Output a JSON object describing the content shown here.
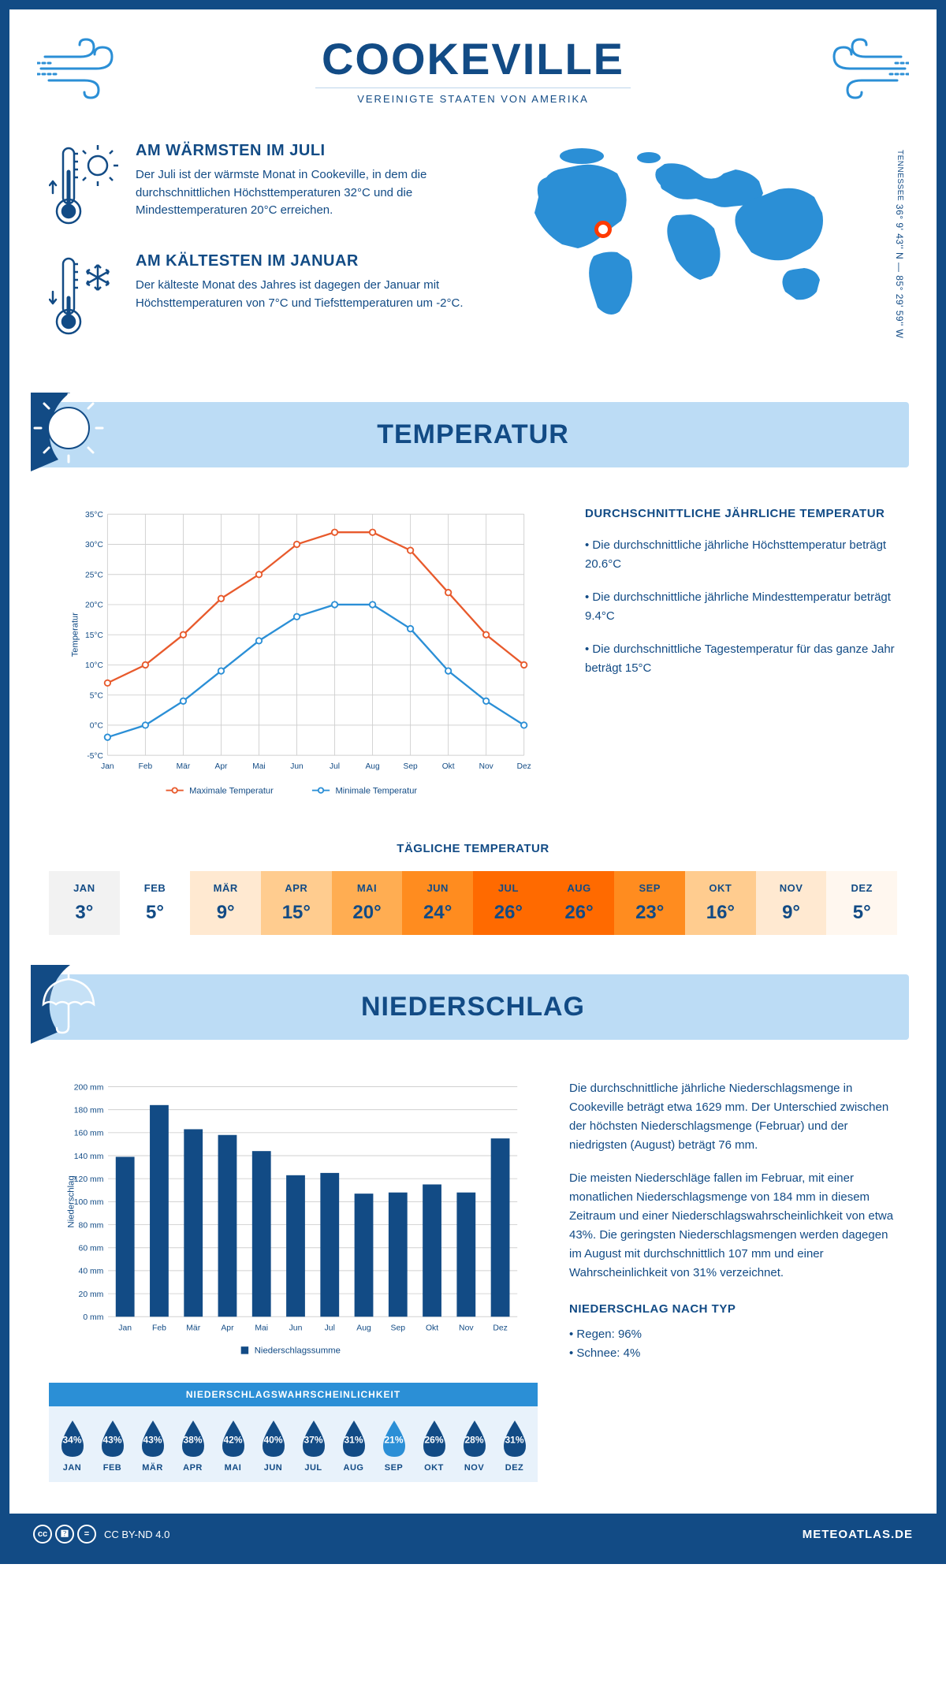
{
  "header": {
    "city": "COOKEVILLE",
    "country": "VEREINIGTE STAATEN VON AMERIKA",
    "region": "TENNESSEE",
    "coords": "36° 9' 43'' N — 85° 29' 59'' W"
  },
  "colors": {
    "primary": "#124b85",
    "accent": "#2b8fd6",
    "banner_bg": "#bcdcf5",
    "marker": "#ff3a00",
    "max_line": "#e85a2c",
    "min_line": "#2b8fd6",
    "bar": "#124b85",
    "prob_bg": "#e8f2fb",
    "drop_dark": "#124b85",
    "drop_light": "#2b8fd6"
  },
  "intro": {
    "warm": {
      "title": "AM WÄRMSTEN IM JULI",
      "text": "Der Juli ist der wärmste Monat in Cookeville, in dem die durchschnittlichen Höchsttemperaturen 32°C und die Mindesttemperaturen 20°C erreichen."
    },
    "cold": {
      "title": "AM KÄLTESTEN IM JANUAR",
      "text": "Der kälteste Monat des Jahres ist dagegen der Januar mit Höchsttemperaturen von 7°C und Tiefsttemperaturen um -2°C."
    }
  },
  "temperature_section": {
    "title": "TEMPERATUR",
    "chart": {
      "type": "line",
      "months": [
        "Jan",
        "Feb",
        "Mär",
        "Apr",
        "Mai",
        "Jun",
        "Jul",
        "Aug",
        "Sep",
        "Okt",
        "Nov",
        "Dez"
      ],
      "max_values": [
        7,
        10,
        15,
        21,
        25,
        30,
        32,
        32,
        29,
        22,
        15,
        10
      ],
      "min_values": [
        -2,
        0,
        4,
        9,
        14,
        18,
        20,
        20,
        16,
        9,
        4,
        0
      ],
      "ylim": [
        -5,
        35
      ],
      "ytick_step": 5,
      "y_unit": "°C",
      "y_label": "Temperatur",
      "legend_max": "Maximale Temperatur",
      "legend_min": "Minimale Temperatur",
      "max_color": "#e85a2c",
      "min_color": "#2b8fd6",
      "grid_color": "#d8d8d8",
      "line_width": 2.5,
      "marker_style": "circle-open",
      "marker_size": 4
    },
    "side": {
      "heading": "DURCHSCHNITTLICHE JÄHRLICHE TEMPERATUR",
      "bullet1": "• Die durchschnittliche jährliche Höchsttemperatur beträgt 20.6°C",
      "bullet2": "• Die durchschnittliche jährliche Mindesttemperatur beträgt 9.4°C",
      "bullet3": "• Die durchschnittliche Tagestemperatur für das ganze Jahr beträgt 15°C"
    },
    "daily": {
      "heading": "TÄGLICHE TEMPERATUR",
      "months": [
        "JAN",
        "FEB",
        "MÄR",
        "APR",
        "MAI",
        "JUN",
        "JUL",
        "AUG",
        "SEP",
        "OKT",
        "NOV",
        "DEZ"
      ],
      "values": [
        "3°",
        "5°",
        "9°",
        "15°",
        "20°",
        "24°",
        "26°",
        "26°",
        "23°",
        "16°",
        "9°",
        "5°"
      ],
      "cell_colors": [
        "#f2f2f2",
        "#ffffff",
        "#ffe9d1",
        "#ffcc8f",
        "#ffad52",
        "#ff8c1f",
        "#ff6a00",
        "#ff6a00",
        "#ff8c1f",
        "#ffcc8f",
        "#ffe9d1",
        "#fff7ef"
      ]
    }
  },
  "precip_section": {
    "title": "NIEDERSCHLAG",
    "chart": {
      "type": "bar",
      "months": [
        "Jan",
        "Feb",
        "Mär",
        "Apr",
        "Mai",
        "Jun",
        "Jul",
        "Aug",
        "Sep",
        "Okt",
        "Nov",
        "Dez"
      ],
      "values": [
        139,
        184,
        163,
        158,
        144,
        123,
        125,
        107,
        108,
        115,
        108,
        155
      ],
      "ylim": [
        0,
        200
      ],
      "ytick_step": 20,
      "y_unit": " mm",
      "y_label": "Niederschlag",
      "bar_color": "#124b85",
      "legend": "Niederschlagssumme",
      "bar_width_ratio": 0.55,
      "grid_color": "#d8d8d8"
    },
    "text1": "Die durchschnittliche jährliche Niederschlagsmenge in Cookeville beträgt etwa 1629 mm. Der Unterschied zwischen der höchsten Niederschlagsmenge (Februar) und der niedrigsten (August) beträgt 76 mm.",
    "text2": "Die meisten Niederschläge fallen im Februar, mit einer monatlichen Niederschlagsmenge von 184 mm in diesem Zeitraum und einer Niederschlagswahrscheinlichkeit von etwa 43%. Die geringsten Niederschlagsmengen werden dagegen im August mit durchschnittlich 107 mm und einer Wahrscheinlichkeit von 31% verzeichnet.",
    "type_heading": "NIEDERSCHLAG NACH TYP",
    "type1": "• Regen: 96%",
    "type2": "• Schnee: 4%",
    "probability": {
      "heading": "NIEDERSCHLAGSWAHRSCHEINLICHKEIT",
      "months": [
        "JAN",
        "FEB",
        "MÄR",
        "APR",
        "MAI",
        "JUN",
        "JUL",
        "AUG",
        "SEP",
        "OKT",
        "NOV",
        "DEZ"
      ],
      "values": [
        "34%",
        "43%",
        "43%",
        "38%",
        "42%",
        "40%",
        "37%",
        "31%",
        "21%",
        "26%",
        "28%",
        "31%"
      ],
      "light_index": 8
    }
  },
  "footer": {
    "license": "CC BY-ND 4.0",
    "site": "METEOATLAS.DE"
  }
}
